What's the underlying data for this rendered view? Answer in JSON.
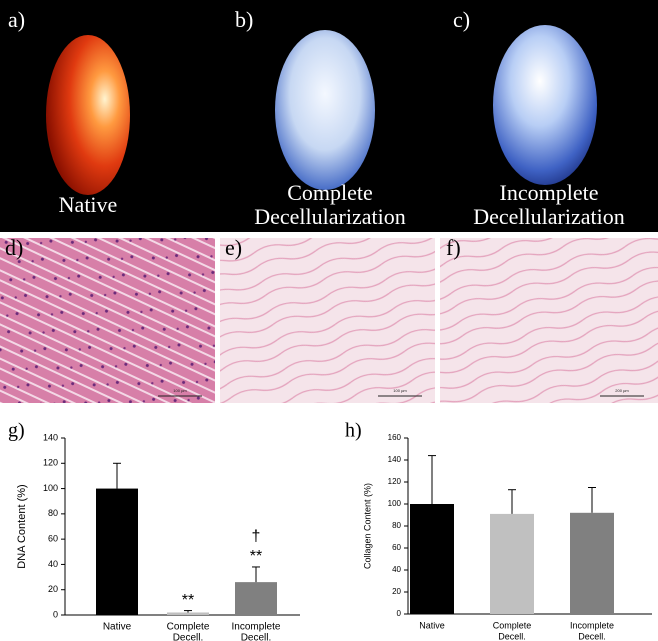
{
  "panels": {
    "labels": [
      "a)",
      "b)",
      "c)",
      "d)",
      "e)",
      "f)"
    ],
    "captions": [
      [
        "Native"
      ],
      [
        "Complete",
        "Decellularization"
      ],
      [
        "Incomplete",
        "Decellularization"
      ]
    ],
    "scale_bars": [
      "100 µm",
      "100 µm",
      "200 µm"
    ]
  },
  "chart_data": [
    {
      "type": "bar",
      "panel_label": "g)",
      "ylabel": "DNA Content (%)",
      "categories": [
        [
          "Native"
        ],
        [
          "Complete",
          "Decell."
        ],
        [
          "Incomplete",
          "Decell."
        ]
      ],
      "values": [
        100,
        2,
        26
      ],
      "errors": [
        20,
        1.5,
        12
      ],
      "colors": [
        "#000000",
        "#c0c0c0",
        "#808080"
      ],
      "annotations": [
        null,
        [
          "**"
        ],
        [
          "†",
          "**"
        ]
      ],
      "ylim": [
        0,
        140
      ],
      "yticks": [
        0,
        20,
        40,
        60,
        80,
        100,
        120,
        140
      ]
    },
    {
      "type": "bar",
      "panel_label": "h)",
      "ylabel": "Collagen Content (%)",
      "categories": [
        [
          "Native"
        ],
        [
          "Complete",
          "Decell."
        ],
        [
          "Incomplete",
          "Decell."
        ]
      ],
      "values": [
        100,
        91,
        92
      ],
      "errors": [
        44,
        22,
        23
      ],
      "colors": [
        "#000000",
        "#c0c0c0",
        "#808080"
      ],
      "ylim": [
        0,
        160
      ],
      "yticks": [
        0,
        20,
        40,
        60,
        80,
        100,
        120,
        140,
        160
      ]
    }
  ]
}
